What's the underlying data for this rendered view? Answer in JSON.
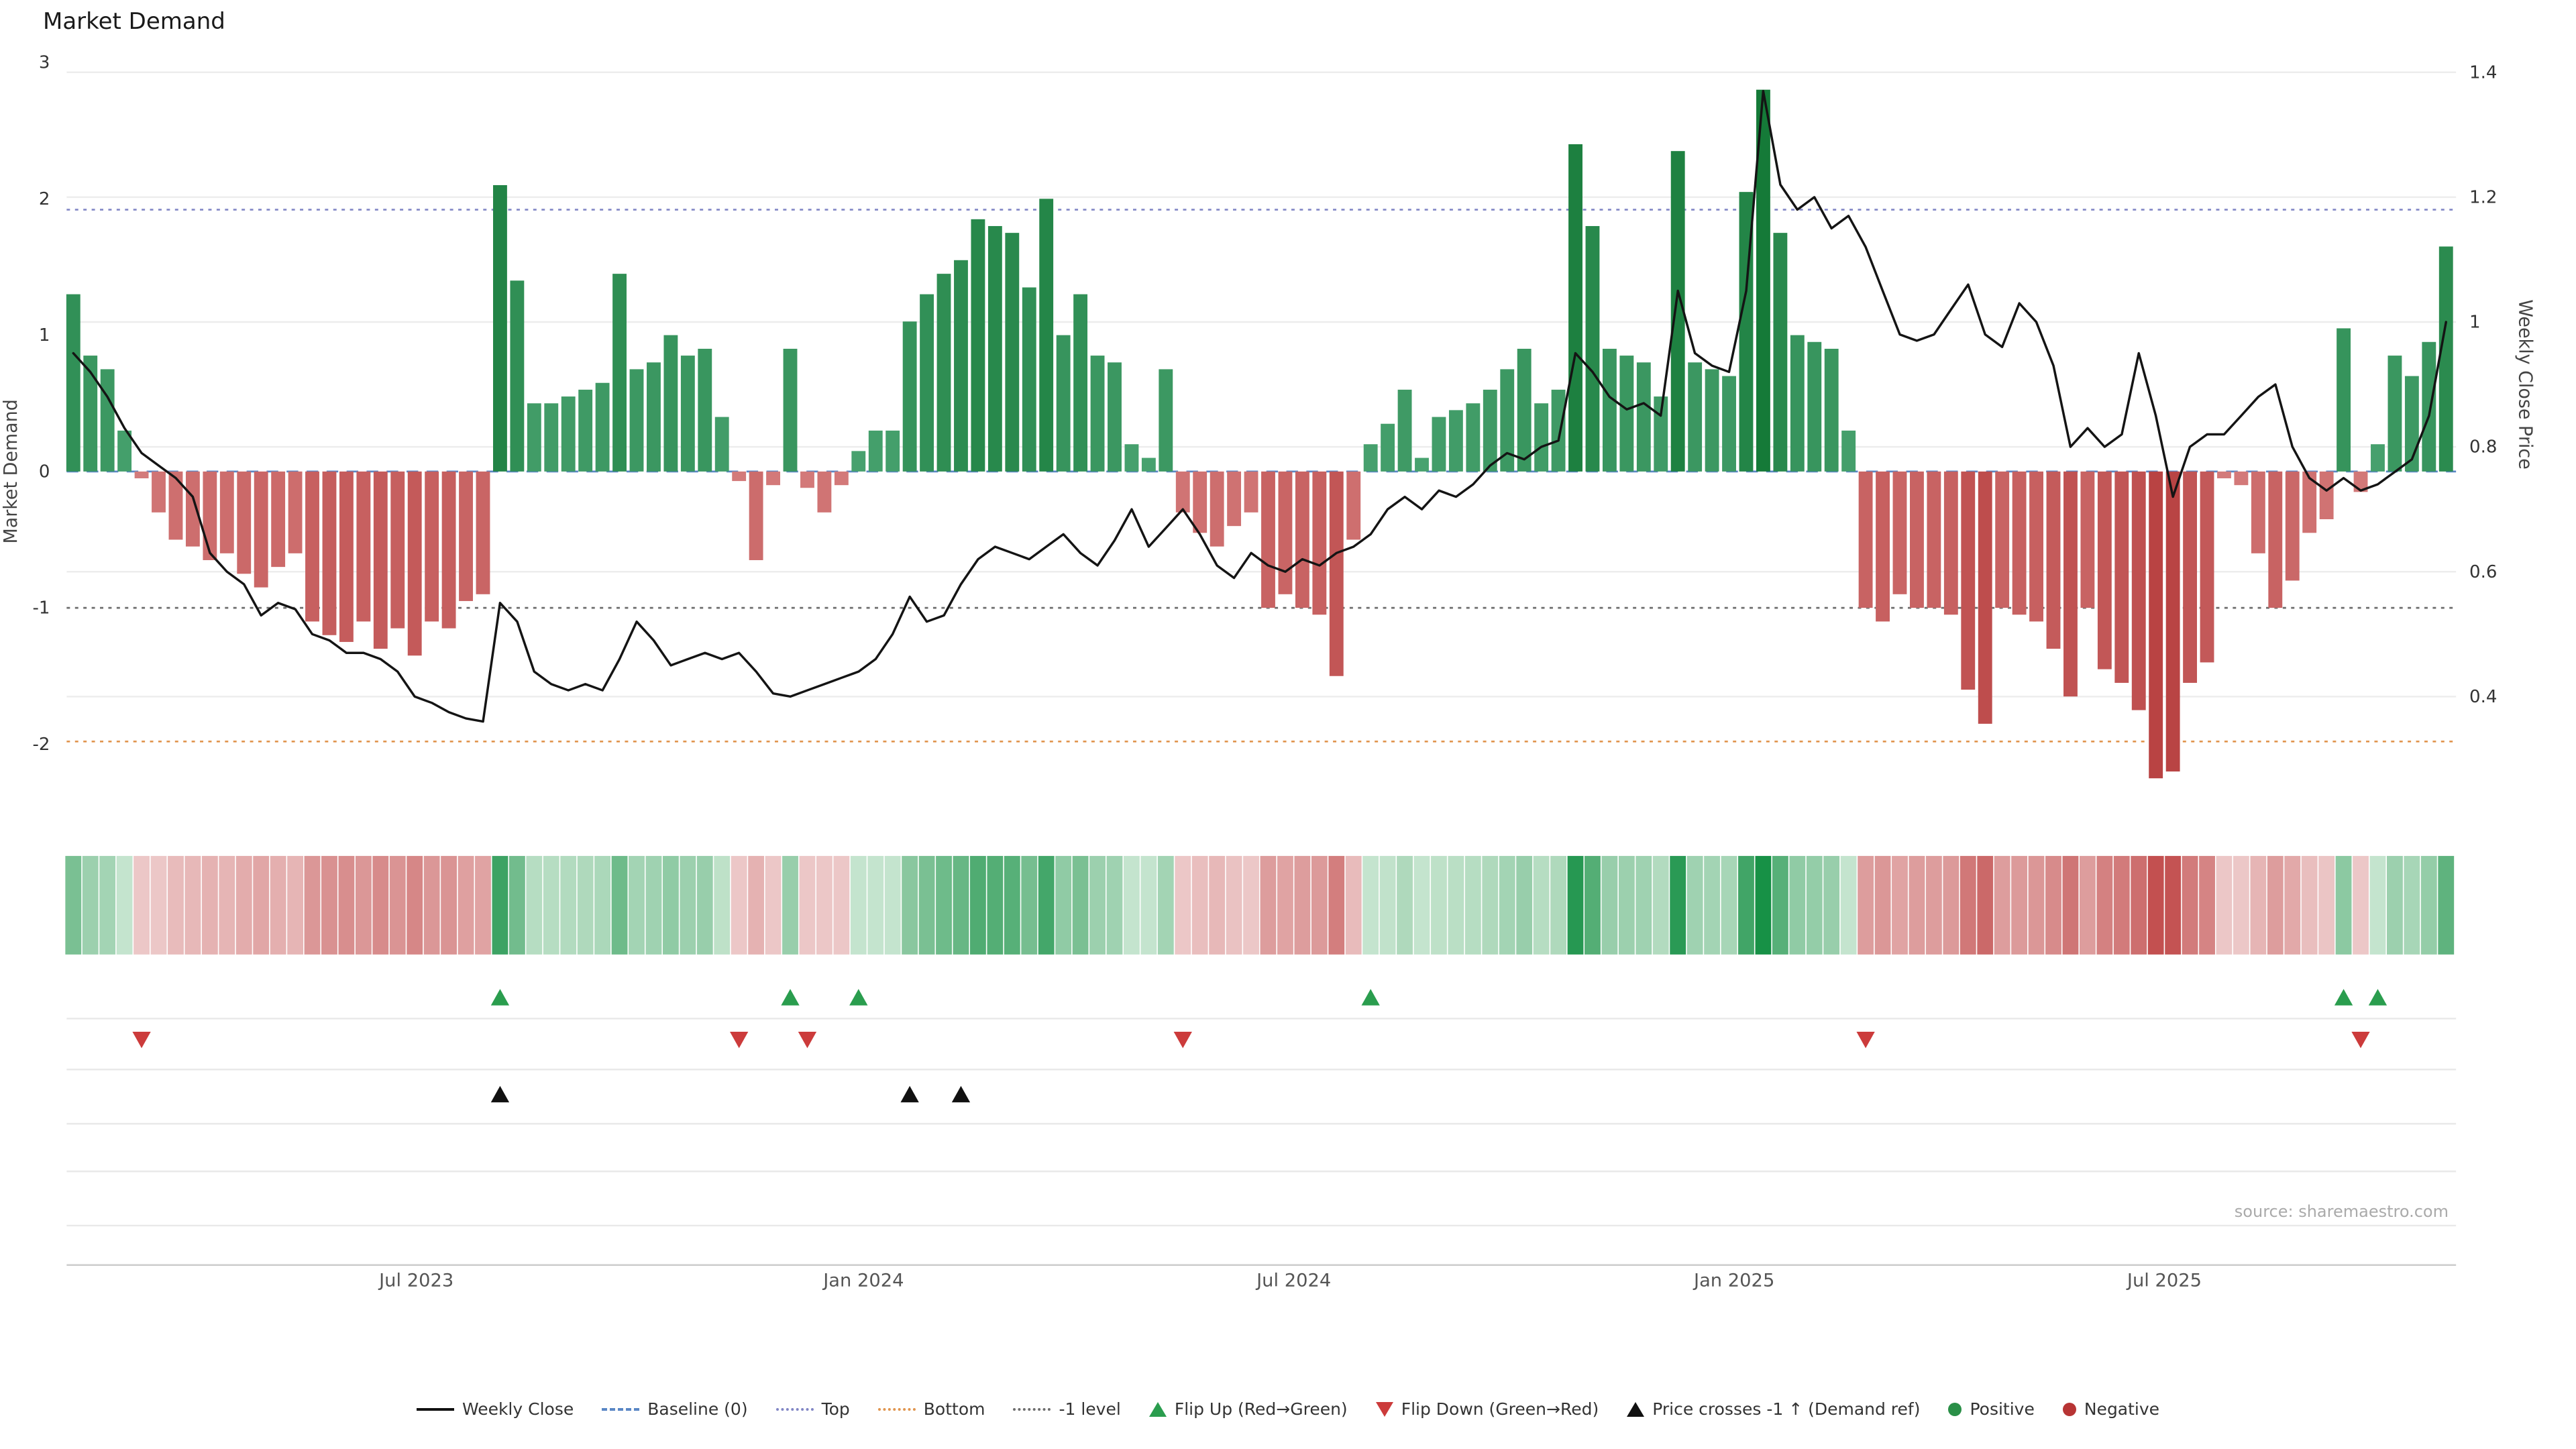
{
  "title": "Market Demand",
  "source": "source: sharemaestro.com",
  "colors": {
    "positive": "#2e8b57",
    "negative": "#cd5c5c",
    "price_line": "#141414",
    "baseline": "#5a87c5",
    "top_line": "#8186c5",
    "bottom_line": "#e0954e",
    "minus1_line": "#6e6e6e",
    "flip_up": "#2a9d4e",
    "flip_down": "#cc3b3b",
    "price_cross": "#111111"
  },
  "chart_data": {
    "type": "bar",
    "title": "Market Demand",
    "axes": {
      "left_label": "Market Demand",
      "right_label": "Weekly Close Price",
      "left_ticks": [
        3,
        2,
        1,
        0,
        -1,
        -2
      ],
      "right_ticks": [
        1.4,
        1.2,
        1,
        0.8,
        0.6,
        0.4
      ],
      "ylim_left": [
        -2.6,
        3
      ],
      "ylim_right": [
        0.33,
        1.42
      ],
      "x_ticks": [
        {
          "label": "Jul 2023",
          "index": 20.1
        },
        {
          "label": "Jan 2024",
          "index": 46.3
        },
        {
          "label": "Jul 2024",
          "index": 71.5
        },
        {
          "label": "Jan 2025",
          "index": 97.3
        },
        {
          "label": "Jul 2025",
          "index": 122.5
        }
      ],
      "grid": true,
      "x_unit": "week"
    },
    "reference_lines": {
      "baseline": {
        "label": "Baseline (0)",
        "value": 0,
        "color": "#5a87c5",
        "style": "dashed"
      },
      "top": {
        "label": "Top",
        "value": 1.92,
        "color": "#8186c5",
        "style": "dotted"
      },
      "bottom": {
        "label": "Bottom",
        "value": -1.98,
        "color": "#e0954e",
        "style": "dotted"
      },
      "minus1": {
        "label": "-1 level",
        "value": -1,
        "color": "#6e6e6e",
        "style": "dotted"
      }
    },
    "series": [
      {
        "name": "Market Demand",
        "type": "bar",
        "axis": "left",
        "values": [
          1.3,
          0.85,
          0.75,
          0.3,
          -0.05,
          -0.3,
          -0.5,
          -0.55,
          -0.65,
          -0.6,
          -0.75,
          -0.85,
          -0.7,
          -0.6,
          -1.1,
          -1.2,
          -1.25,
          -1.1,
          -1.3,
          -1.15,
          -1.35,
          -1.1,
          -1.15,
          -0.95,
          -0.9,
          2.1,
          1.4,
          0.5,
          0.5,
          0.55,
          0.6,
          0.65,
          1.45,
          0.75,
          0.8,
          1.0,
          0.85,
          0.9,
          0.4,
          -0.07,
          -0.65,
          -0.1,
          0.9,
          -0.12,
          -0.3,
          -0.1,
          0.15,
          0.3,
          0.3,
          1.1,
          1.3,
          1.45,
          1.55,
          1.85,
          1.8,
          1.75,
          1.35,
          2.0,
          1.0,
          1.3,
          0.85,
          0.8,
          0.2,
          0.1,
          0.75,
          -0.3,
          -0.45,
          -0.55,
          -0.4,
          -0.3,
          -1.0,
          -0.9,
          -1.0,
          -1.05,
          -1.5,
          -0.5,
          0.2,
          0.35,
          0.6,
          0.1,
          0.4,
          0.45,
          0.5,
          0.6,
          0.75,
          0.9,
          0.5,
          0.6,
          2.4,
          1.8,
          0.9,
          0.85,
          0.8,
          0.55,
          2.35,
          0.8,
          0.75,
          0.7,
          2.05,
          2.8,
          1.75,
          1.0,
          0.95,
          0.9,
          0.3,
          -1.0,
          -1.1,
          -0.9,
          -1.0,
          -1.0,
          -1.05,
          -1.6,
          -1.85,
          -1.0,
          -1.05,
          -1.1,
          -1.3,
          -1.65,
          -1.0,
          -1.45,
          -1.55,
          -1.75,
          -2.25,
          -2.2,
          -1.55,
          -1.4,
          -0.05,
          -0.1,
          -0.6,
          -1.0,
          -0.8,
          -0.45,
          -0.35,
          1.05,
          -0.15,
          0.2,
          0.85,
          0.7,
          0.95,
          1.65
        ]
      },
      {
        "name": "Weekly Close",
        "type": "line",
        "axis": "right",
        "values": [
          0.95,
          0.92,
          0.88,
          0.83,
          0.79,
          0.77,
          0.75,
          0.72,
          0.63,
          0.6,
          0.58,
          0.53,
          0.55,
          0.54,
          0.5,
          0.49,
          0.47,
          0.47,
          0.46,
          0.44,
          0.4,
          0.39,
          0.375,
          0.365,
          0.36,
          0.55,
          0.52,
          0.44,
          0.42,
          0.41,
          0.42,
          0.41,
          0.46,
          0.52,
          0.49,
          0.45,
          0.46,
          0.47,
          0.46,
          0.47,
          0.44,
          0.405,
          0.4,
          0.41,
          0.42,
          0.43,
          0.44,
          0.46,
          0.5,
          0.56,
          0.52,
          0.53,
          0.58,
          0.62,
          0.64,
          0.63,
          0.62,
          0.64,
          0.66,
          0.63,
          0.61,
          0.65,
          0.7,
          0.64,
          0.67,
          0.7,
          0.66,
          0.61,
          0.59,
          0.63,
          0.61,
          0.6,
          0.62,
          0.61,
          0.63,
          0.64,
          0.66,
          0.7,
          0.72,
          0.7,
          0.73,
          0.72,
          0.74,
          0.77,
          0.79,
          0.78,
          0.8,
          0.81,
          0.95,
          0.92,
          0.88,
          0.86,
          0.87,
          0.85,
          1.05,
          0.95,
          0.93,
          0.92,
          1.05,
          1.37,
          1.22,
          1.18,
          1.2,
          1.15,
          1.17,
          1.12,
          1.05,
          0.98,
          0.97,
          0.98,
          1.02,
          1.06,
          0.98,
          0.96,
          1.03,
          1.0,
          0.93,
          0.8,
          0.83,
          0.8,
          0.82,
          0.95,
          0.85,
          0.72,
          0.8,
          0.82,
          0.82,
          0.85,
          0.88,
          0.9,
          0.8,
          0.75,
          0.73,
          0.75,
          0.73,
          0.74,
          0.76,
          0.78,
          0.85,
          1.0
        ]
      }
    ],
    "markers": {
      "flip_up": {
        "label": "Flip Up (Red→Green)",
        "color": "#2a9d4e",
        "indices": [
          25,
          42,
          46,
          76,
          133,
          135
        ]
      },
      "flip_down": {
        "label": "Flip Down (Green→Red)",
        "color": "#cc3b3b",
        "indices": [
          4,
          39,
          43,
          65,
          105,
          134
        ]
      },
      "price_cross": {
        "label": "Price crosses -1 ↑ (Demand ref)",
        "color": "#111111",
        "indices": [
          25,
          49,
          52
        ]
      }
    },
    "heatmap_strip": {
      "description": "Positive/Negative demand intensity strip",
      "positive_label": "Positive",
      "negative_label": "Negative"
    }
  },
  "legend": [
    {
      "label": "Weekly Close",
      "swatch": "line",
      "color": "#111111"
    },
    {
      "label": "Baseline (0)",
      "swatch": "dashed",
      "color": "#5a87c5"
    },
    {
      "label": "Top",
      "swatch": "dotted",
      "color": "#8186c5"
    },
    {
      "label": "Bottom",
      "swatch": "dotted",
      "color": "#e0954e"
    },
    {
      "label": "-1 level",
      "swatch": "dotted",
      "color": "#6e6e6e"
    },
    {
      "label": "Flip Up (Red→Green)",
      "swatch": "triangle-up",
      "color": "#2a9d4e"
    },
    {
      "label": "Flip Down (Green→Red)",
      "swatch": "triangle-down",
      "color": "#cc3b3b"
    },
    {
      "label": "Price crosses -1 ↑ (Demand ref)",
      "swatch": "triangle-up",
      "color": "#111111"
    },
    {
      "label": "Positive",
      "swatch": "dot",
      "color": "#2a8f47"
    },
    {
      "label": "Negative",
      "swatch": "dot",
      "color": "#b73434"
    }
  ]
}
